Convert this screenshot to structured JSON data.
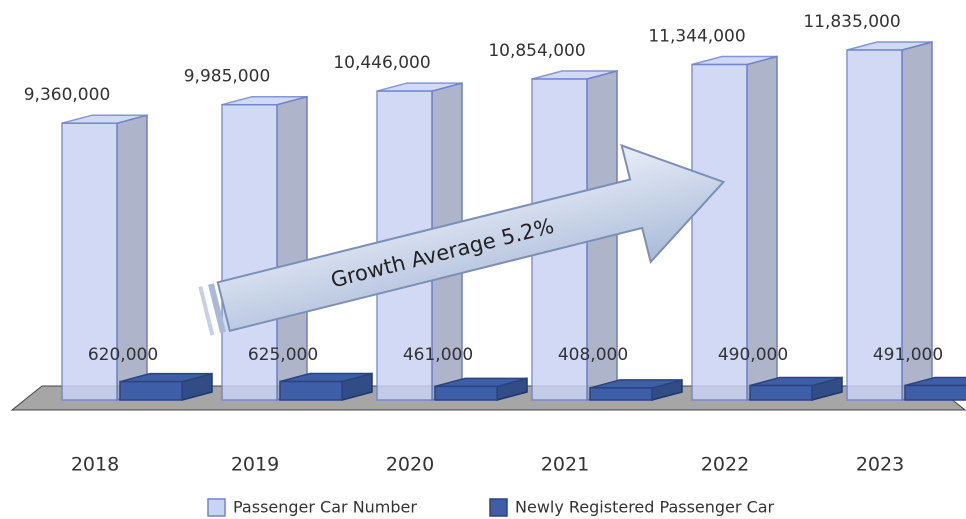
{
  "chart_data": {
    "type": "bar3d",
    "categories": [
      "2018",
      "2019",
      "2020",
      "2021",
      "2022",
      "2023"
    ],
    "series": [
      {
        "name": "Passenger Car Number",
        "color": "#c9d3f3",
        "values": [
          9360000,
          9985000,
          10446000,
          10854000,
          11344000,
          11835000
        ],
        "value_labels": [
          "9,360,000",
          "9,985,000",
          "10,446,000",
          "10,854,000",
          "11,344,000",
          "11,835,000"
        ]
      },
      {
        "name": "Newly Registered Passenger Car",
        "color": "#3e5fa8",
        "values": [
          620000,
          625000,
          461000,
          408000,
          490000,
          491000
        ],
        "value_labels": [
          "620,000",
          "625,000",
          "461,000",
          "408,000",
          "490,000",
          "491,000"
        ]
      }
    ],
    "annotation": "Growth Average 5.2%"
  }
}
